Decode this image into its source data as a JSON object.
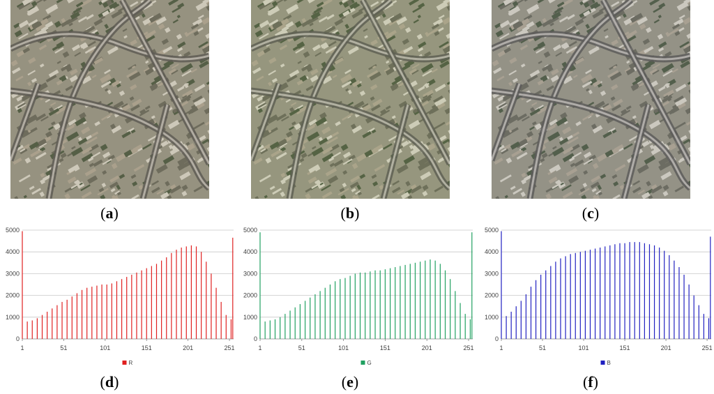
{
  "panels": [
    {
      "id": "a",
      "caption_open": "(",
      "caption_letter": "a",
      "caption_close": ")",
      "channel": "red"
    },
    {
      "id": "b",
      "caption_open": "(",
      "caption_letter": "b",
      "caption_close": ")",
      "channel": "green"
    },
    {
      "id": "c",
      "caption_open": "(",
      "caption_letter": "c",
      "caption_close": ")",
      "channel": "blue"
    }
  ],
  "chart_captions": [
    {
      "open": "(",
      "letter": "d",
      "close": ")"
    },
    {
      "open": "(",
      "letter": "e",
      "close": ")"
    },
    {
      "open": "(",
      "letter": "f",
      "close": ")"
    }
  ],
  "chart_data": [
    {
      "type": "bar",
      "legend": "R",
      "color": "#e02020",
      "ylim": [
        0,
        5000
      ],
      "yticks": [
        0,
        1000,
        2000,
        3000,
        4000,
        5000
      ],
      "xticks": [
        "1",
        "51",
        "101",
        "151",
        "201",
        "251"
      ],
      "legend_placement": "bottom-center",
      "grid": true,
      "x": [
        1,
        7,
        13,
        19,
        25,
        31,
        37,
        43,
        49,
        55,
        61,
        67,
        73,
        79,
        85,
        91,
        97,
        103,
        109,
        115,
        121,
        127,
        133,
        139,
        145,
        151,
        157,
        163,
        169,
        175,
        181,
        187,
        193,
        199,
        205,
        211,
        217,
        223,
        229,
        235,
        241,
        247,
        253,
        255
      ],
      "values": [
        4950,
        800,
        850,
        950,
        1100,
        1250,
        1400,
        1550,
        1700,
        1800,
        1950,
        2100,
        2250,
        2350,
        2400,
        2450,
        2500,
        2500,
        2550,
        2650,
        2750,
        2850,
        2950,
        3050,
        3150,
        3250,
        3350,
        3450,
        3600,
        3750,
        3950,
        4100,
        4200,
        4250,
        4300,
        4250,
        4000,
        3550,
        3000,
        2350,
        1700,
        1100,
        900,
        4650
      ]
    },
    {
      "type": "bar",
      "legend": "G",
      "color": "#20a060",
      "ylim": [
        0,
        5000
      ],
      "yticks": [
        0,
        1000,
        2000,
        3000,
        4000,
        5000
      ],
      "xticks": [
        "1",
        "51",
        "101",
        "151",
        "201",
        "251"
      ],
      "legend_placement": "bottom-center",
      "grid": true,
      "x": [
        1,
        7,
        13,
        19,
        25,
        31,
        37,
        43,
        49,
        55,
        61,
        67,
        73,
        79,
        85,
        91,
        97,
        103,
        109,
        115,
        121,
        127,
        133,
        139,
        145,
        151,
        157,
        163,
        169,
        175,
        181,
        187,
        193,
        199,
        205,
        211,
        217,
        223,
        229,
        235,
        241,
        247,
        253,
        255
      ],
      "values": [
        4900,
        800,
        850,
        900,
        1000,
        1150,
        1300,
        1450,
        1600,
        1750,
        1900,
        2050,
        2200,
        2350,
        2500,
        2650,
        2750,
        2800,
        2900,
        3000,
        3050,
        3050,
        3100,
        3150,
        3150,
        3200,
        3250,
        3300,
        3350,
        3400,
        3450,
        3500,
        3550,
        3600,
        3650,
        3600,
        3450,
        3150,
        2750,
        2200,
        1650,
        1150,
        900,
        4900
      ]
    },
    {
      "type": "bar",
      "legend": "B",
      "color": "#2020c0",
      "ylim": [
        0,
        5000
      ],
      "yticks": [
        0,
        1000,
        2000,
        3000,
        4000,
        5000
      ],
      "xticks": [
        "1",
        "51",
        "101",
        "151",
        "201",
        "251"
      ],
      "legend_placement": "bottom-center",
      "grid": true,
      "x": [
        1,
        7,
        13,
        19,
        25,
        31,
        37,
        43,
        49,
        55,
        61,
        67,
        73,
        79,
        85,
        91,
        97,
        103,
        109,
        115,
        121,
        127,
        133,
        139,
        145,
        151,
        157,
        163,
        169,
        175,
        181,
        187,
        193,
        199,
        205,
        211,
        217,
        223,
        229,
        235,
        241,
        247,
        253,
        255
      ],
      "values": [
        4950,
        1050,
        1250,
        1500,
        1750,
        2050,
        2400,
        2700,
        2950,
        3150,
        3350,
        3550,
        3700,
        3800,
        3900,
        3950,
        4000,
        4050,
        4100,
        4150,
        4200,
        4250,
        4300,
        4350,
        4400,
        4400,
        4450,
        4450,
        4450,
        4400,
        4350,
        4300,
        4200,
        4050,
        3850,
        3600,
        3300,
        2950,
        2500,
        2000,
        1550,
        1150,
        950,
        4700
      ]
    }
  ]
}
